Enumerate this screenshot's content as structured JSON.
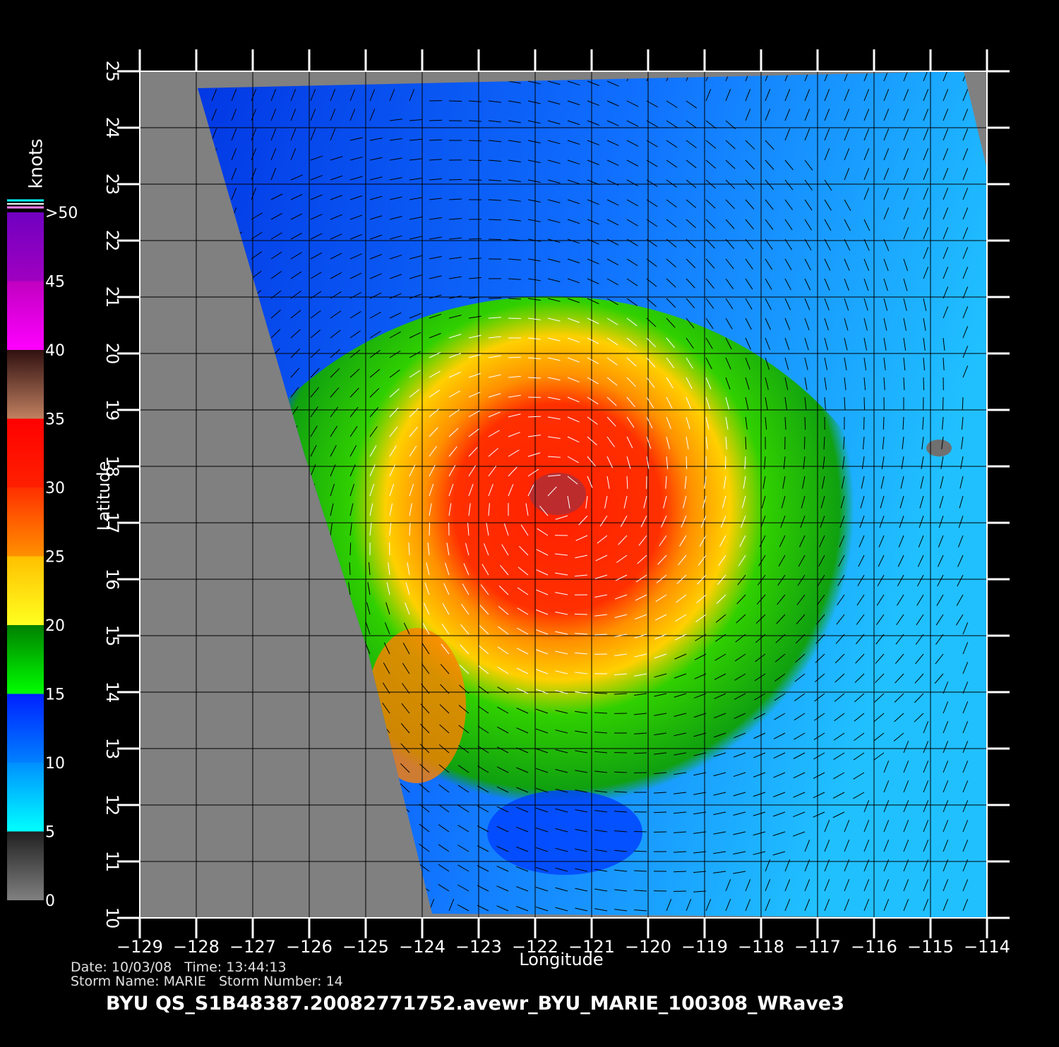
{
  "map": {
    "x_label": "Longitude",
    "y_label": "Latitude",
    "xlim": [
      -129,
      -114
    ],
    "ylim": [
      10,
      25
    ],
    "xticks": [
      {
        "value": -129,
        "label": "−129"
      },
      {
        "value": -128,
        "label": "−128"
      },
      {
        "value": -127,
        "label": "−127"
      },
      {
        "value": -126,
        "label": "−126"
      },
      {
        "value": -125,
        "label": "−125"
      },
      {
        "value": -124,
        "label": "−124"
      },
      {
        "value": -123,
        "label": "−123"
      },
      {
        "value": -122,
        "label": "−122"
      },
      {
        "value": -121,
        "label": "−121"
      },
      {
        "value": -120,
        "label": "−120"
      },
      {
        "value": -119,
        "label": "−119"
      },
      {
        "value": -118,
        "label": "−118"
      },
      {
        "value": -117,
        "label": "−117"
      },
      {
        "value": -116,
        "label": "−116"
      },
      {
        "value": -115,
        "label": "−115"
      },
      {
        "value": -114,
        "label": "−114"
      }
    ],
    "yticks": [
      10,
      11,
      12,
      13,
      14,
      15,
      16,
      17,
      18,
      19,
      20,
      21,
      22,
      23,
      24,
      25
    ]
  },
  "colorbar": {
    "title": "knots",
    "ticks": [
      0,
      5,
      10,
      15,
      20,
      25,
      30,
      35,
      40,
      45,
      {
        "value": 50,
        "label": ">50"
      }
    ],
    "colors": [
      [
        "#808080",
        "#202020"
      ],
      [
        "#00ffff",
        "#0090ff"
      ],
      [
        "#0080ff",
        "#0020ff"
      ],
      [
        "#00ff00",
        "#008000"
      ],
      [
        "#ffff20",
        "#ffc000"
      ],
      [
        "#ff9000",
        "#ff3000"
      ],
      [
        "#ff2000",
        "#ff0000"
      ],
      [
        "#c08060",
        "#301010"
      ],
      [
        "#ff00ff",
        "#c000c0"
      ],
      [
        "#a000c0",
        "#7000c0"
      ]
    ]
  },
  "info": {
    "line1": "Date: 10/03/08   Time: 13:44:13",
    "line2": "Storm Name: MARIE   Storm Number: 14",
    "footer": "BYU  QS_S1B48387.20082771752.avewr_BYU_MARIE_100308_WRave3"
  }
}
